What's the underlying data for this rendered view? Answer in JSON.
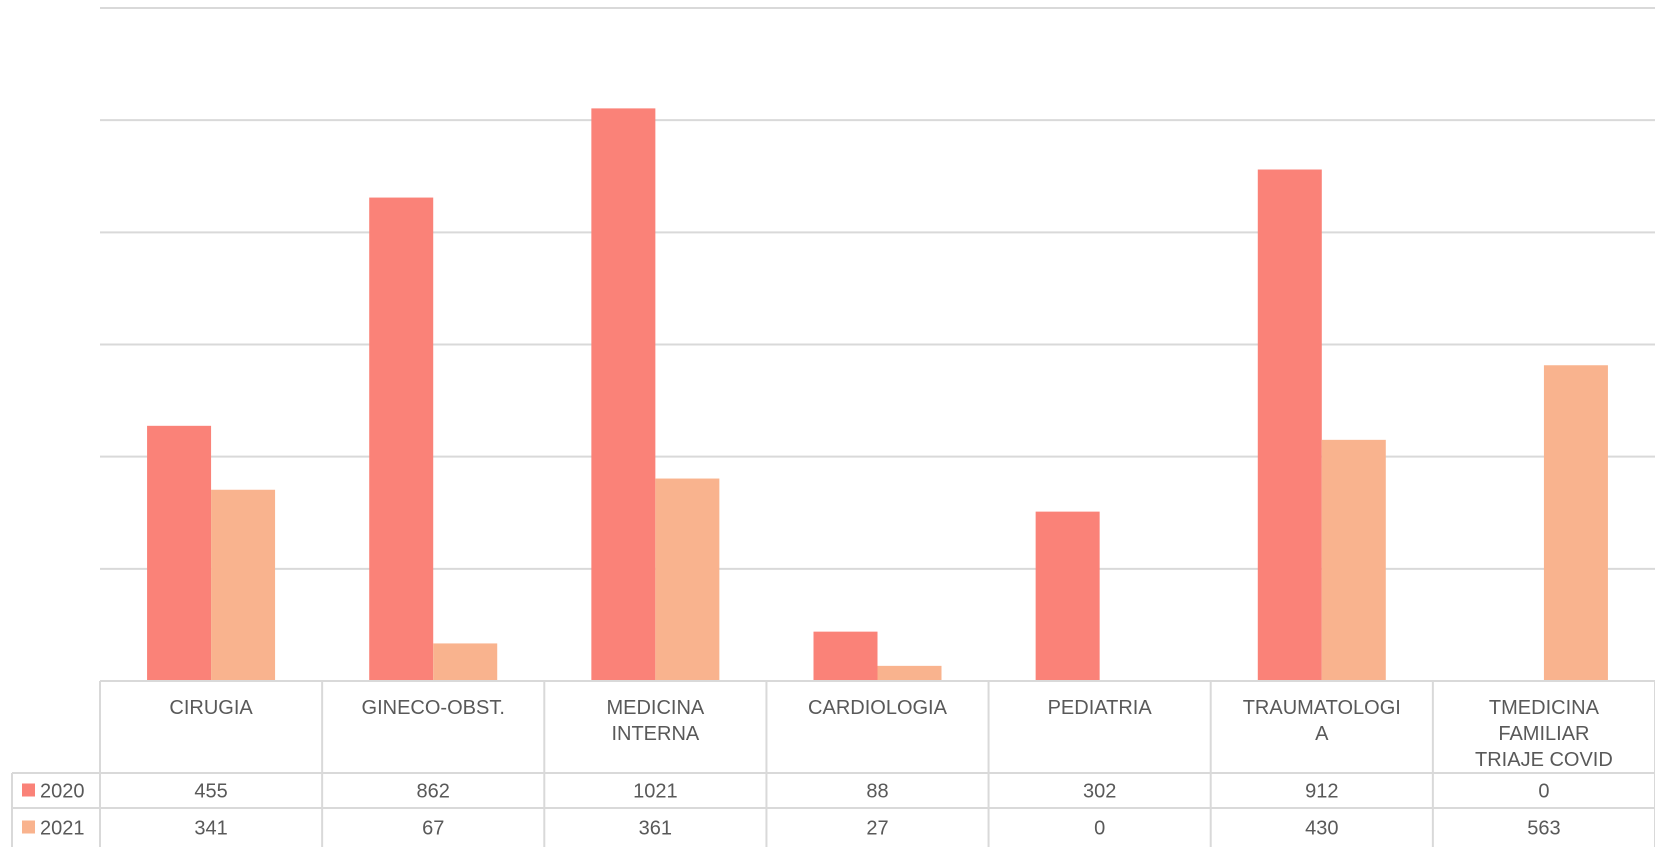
{
  "chart_data": {
    "type": "bar",
    "categories": [
      [
        "CIRUGIA"
      ],
      [
        "GINECO-OBST."
      ],
      [
        "MEDICINA",
        "INTERNA"
      ],
      [
        "CARDIOLOGIA"
      ],
      [
        "PEDIATRIA"
      ],
      [
        "TRAUMATOLOGI",
        "A"
      ],
      [
        "TMEDICINA",
        "FAMILIAR",
        "TRIAJE COVID"
      ]
    ],
    "series": [
      {
        "name": "2020",
        "color": "#FA8278",
        "values": [
          455,
          862,
          1021,
          88,
          302,
          912,
          0
        ]
      },
      {
        "name": "2021",
        "color": "#F9B38E",
        "values": [
          341,
          67,
          361,
          27,
          0,
          430,
          563
        ]
      }
    ],
    "ylim": [
      0,
      1200
    ],
    "ytick_step": 200,
    "y_tick_labels_visible": false,
    "grid": true,
    "data_table": true,
    "legend": "data-table-row-headers"
  }
}
